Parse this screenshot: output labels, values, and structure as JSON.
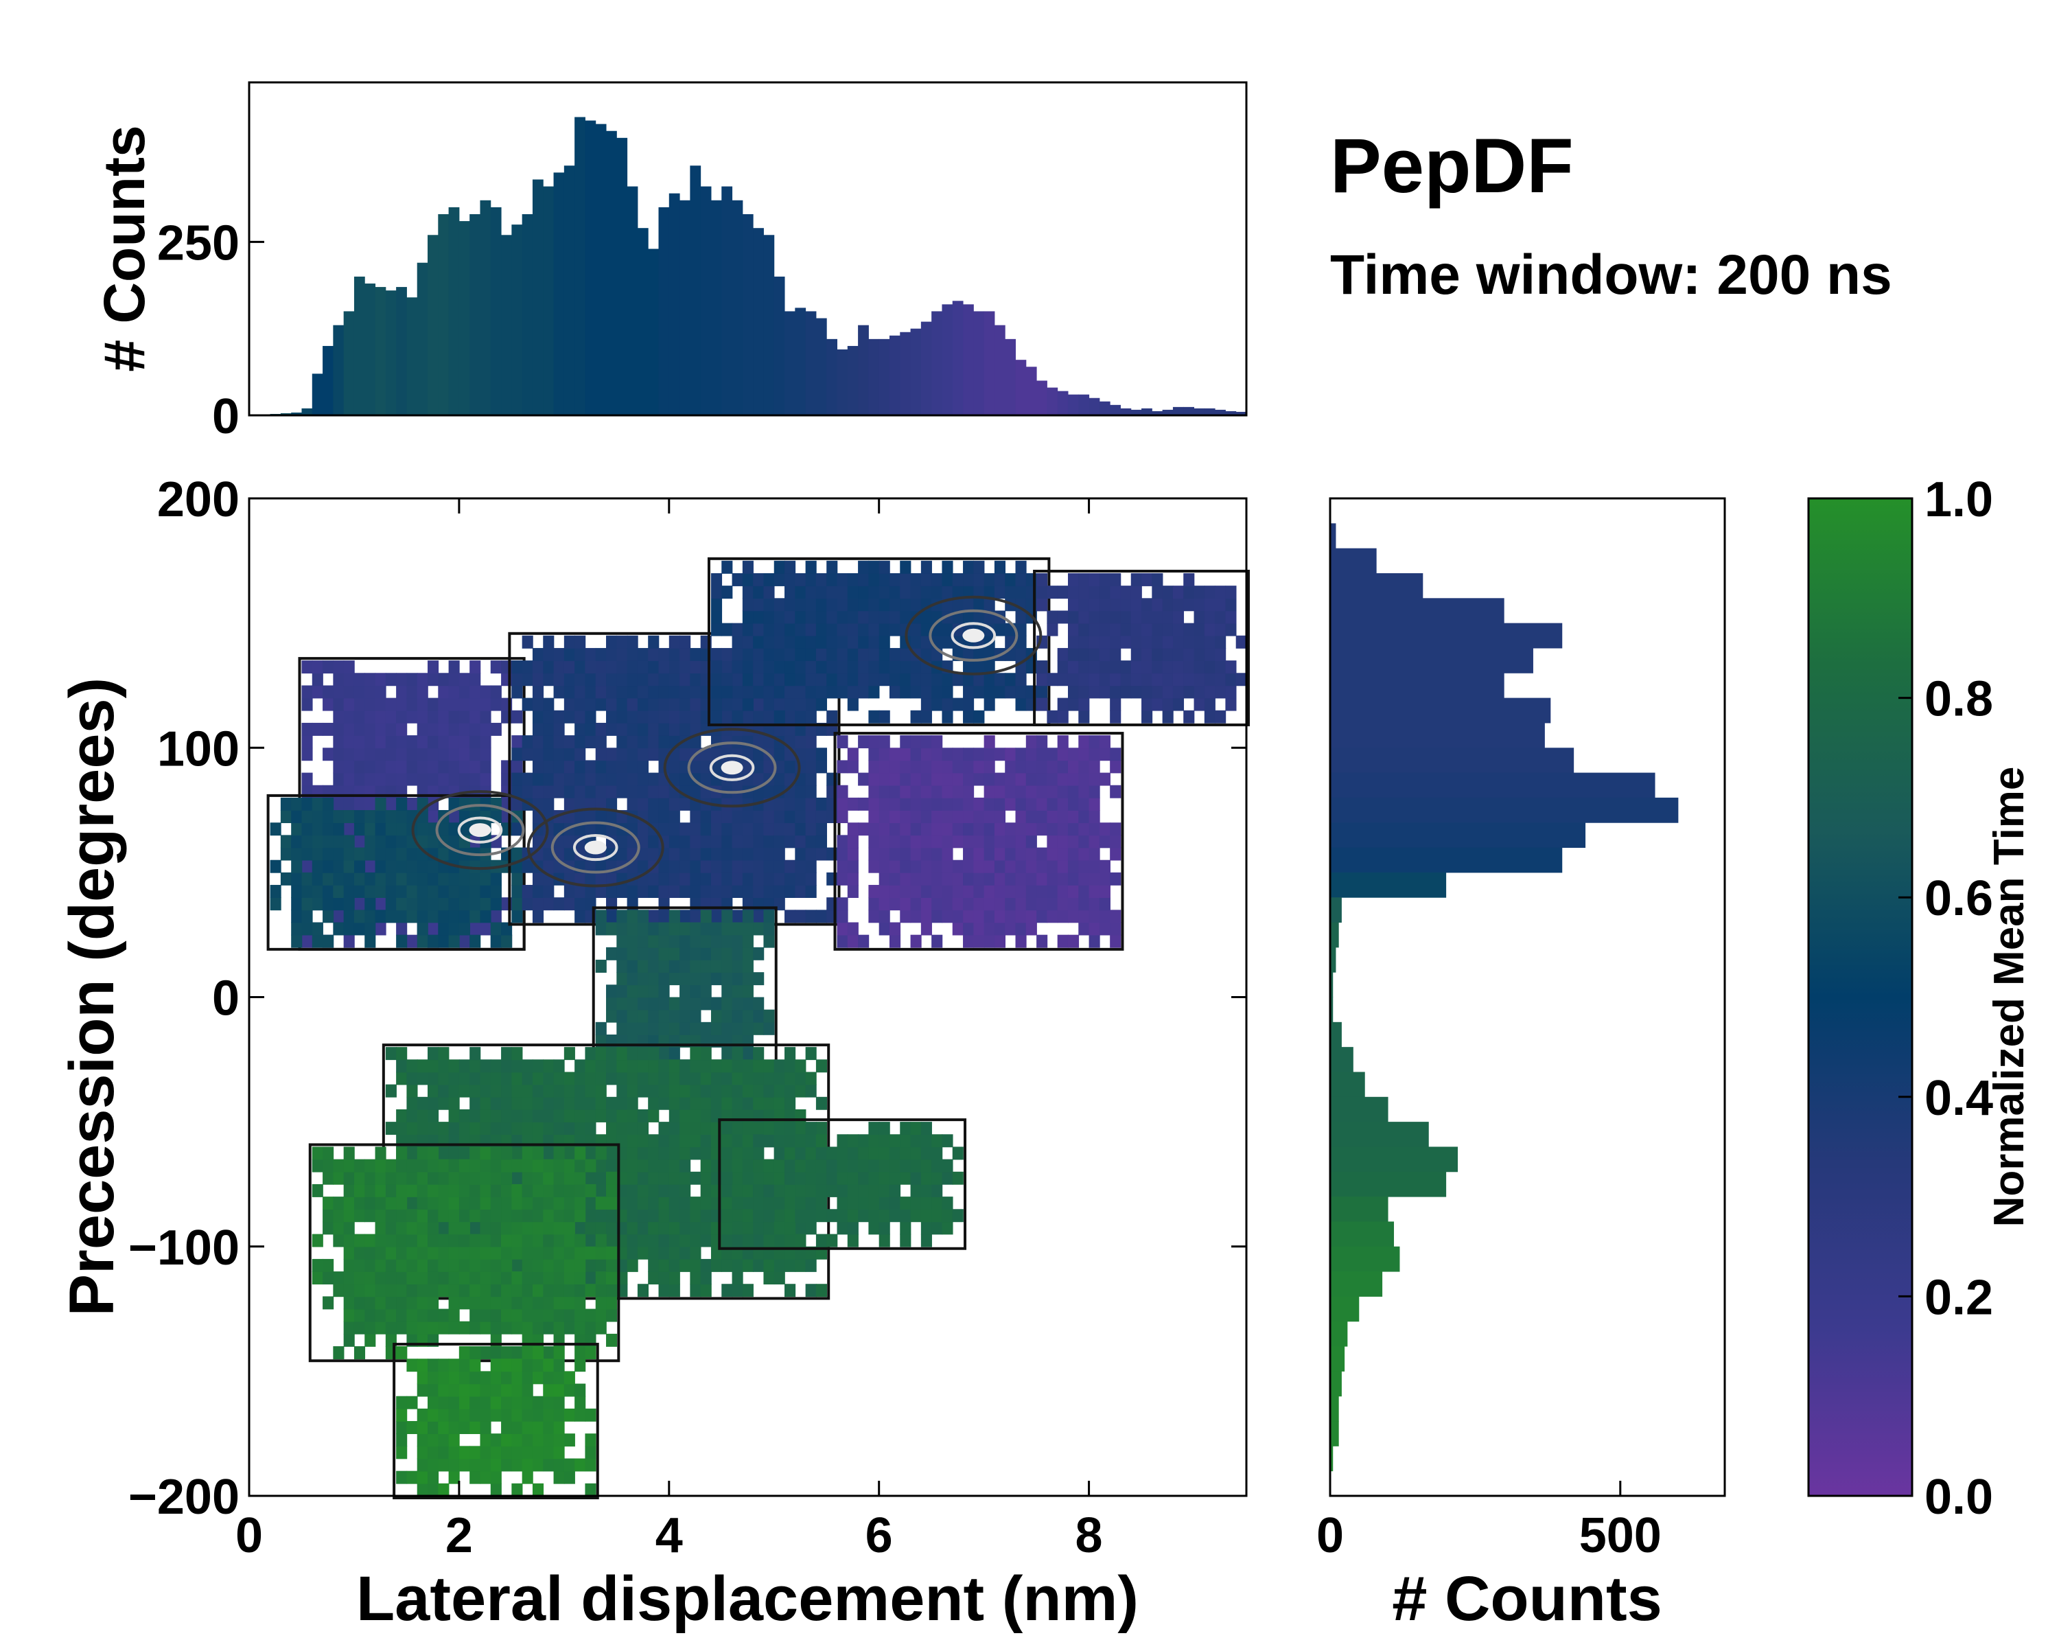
{
  "title": "PepDF",
  "subtitle": "Time window: 200 ns",
  "colors": {
    "cmap": [
      "#6a35a0",
      "#3c3a8f",
      "#26397a",
      "#023e6a",
      "#1a5a5a",
      "#1d6e40",
      "#25902a"
    ]
  },
  "chart_data": [
    {
      "type": "heatmap",
      "name": "main-2d-density",
      "xlabel": "Lateral displacement (nm)",
      "ylabel": "Precession (degrees)",
      "xlim": [
        0,
        9.5
      ],
      "ylim": [
        -200,
        200
      ],
      "xticks": [
        "0",
        "2",
        "4",
        "6",
        "8"
      ],
      "xtick_values": [
        0,
        2,
        4,
        6,
        8
      ],
      "yticks": [
        "200",
        "100",
        "0",
        "−100",
        "−200"
      ],
      "ytick_values": [
        200,
        100,
        0,
        -100,
        -200
      ],
      "regions": [
        {
          "x": [
            0.5,
            2.6
          ],
          "y": [
            20,
            135
          ],
          "t": 0.2
        },
        {
          "x": [
            0.2,
            2.6
          ],
          "y": [
            20,
            80
          ],
          "t": 0.58
        },
        {
          "x": [
            2.5,
            5.6
          ],
          "y": [
            30,
            145
          ],
          "t": 0.38
        },
        {
          "x": [
            4.4,
            7.6
          ],
          "y": [
            110,
            175
          ],
          "t": 0.42
        },
        {
          "x": [
            7.5,
            9.5
          ],
          "y": [
            110,
            170
          ],
          "t": 0.3
        },
        {
          "x": [
            5.6,
            8.3
          ],
          "y": [
            20,
            105
          ],
          "t": 0.1
        },
        {
          "x": [
            3.3,
            5.0
          ],
          "y": [
            -30,
            35
          ],
          "t": 0.68
        },
        {
          "x": [
            1.3,
            5.5
          ],
          "y": [
            -120,
            -20
          ],
          "t": 0.8
        },
        {
          "x": [
            0.6,
            3.5
          ],
          "y": [
            -145,
            -60
          ],
          "t": 0.9
        },
        {
          "x": [
            1.4,
            3.3
          ],
          "y": [
            -200,
            -140
          ],
          "t": 0.96
        },
        {
          "x": [
            4.5,
            6.8
          ],
          "y": [
            -100,
            -50
          ],
          "t": 0.8
        }
      ],
      "hotspots": [
        {
          "x": 2.2,
          "y": 67
        },
        {
          "x": 3.3,
          "y": 60
        },
        {
          "x": 4.6,
          "y": 92
        },
        {
          "x": 6.9,
          "y": 145
        }
      ]
    },
    {
      "type": "bar",
      "name": "top-histogram",
      "ylabel": "# Counts",
      "yticks": [
        "0",
        "250"
      ],
      "ytick_values": [
        0,
        250
      ],
      "ylim": [
        0,
        480
      ],
      "bin_width": 0.1,
      "x_start": 0.2,
      "values": [
        2,
        3,
        4,
        10,
        60,
        100,
        130,
        150,
        200,
        190,
        185,
        180,
        185,
        170,
        220,
        260,
        290,
        300,
        280,
        290,
        310,
        300,
        260,
        275,
        290,
        340,
        330,
        350,
        360,
        430,
        425,
        420,
        410,
        400,
        330,
        270,
        240,
        300,
        320,
        310,
        360,
        330,
        310,
        330,
        310,
        290,
        270,
        260,
        200,
        150,
        155,
        150,
        140,
        110,
        95,
        100,
        130,
        110,
        110,
        115,
        120,
        125,
        135,
        150,
        160,
        165,
        160,
        150,
        150,
        130,
        110,
        80,
        70,
        50,
        40,
        35,
        30,
        30,
        25,
        20,
        15,
        10,
        8,
        10,
        6,
        8,
        12,
        12,
        10,
        10,
        8,
        6,
        5
      ],
      "times": [
        0.6,
        0.6,
        0.55,
        0.55,
        0.5,
        0.5,
        0.55,
        0.6,
        0.6,
        0.6,
        0.62,
        0.6,
        0.58,
        0.6,
        0.6,
        0.62,
        0.62,
        0.6,
        0.6,
        0.58,
        0.58,
        0.56,
        0.56,
        0.56,
        0.55,
        0.55,
        0.55,
        0.52,
        0.52,
        0.52,
        0.5,
        0.5,
        0.5,
        0.5,
        0.5,
        0.5,
        0.5,
        0.48,
        0.48,
        0.48,
        0.48,
        0.47,
        0.47,
        0.46,
        0.46,
        0.45,
        0.45,
        0.45,
        0.44,
        0.42,
        0.42,
        0.4,
        0.4,
        0.38,
        0.36,
        0.35,
        0.34,
        0.32,
        0.3,
        0.28,
        0.26,
        0.25,
        0.22,
        0.2,
        0.18,
        0.16,
        0.14,
        0.14,
        0.12,
        0.12,
        0.12,
        0.1,
        0.1,
        0.1,
        0.12,
        0.14,
        0.16,
        0.18,
        0.2,
        0.22,
        0.24,
        0.26,
        0.28,
        0.3,
        0.3,
        0.3,
        0.3,
        0.3,
        0.3,
        0.3,
        0.3,
        0.3,
        0.3
      ]
    },
    {
      "type": "bar",
      "orientation": "horizontal",
      "name": "right-histogram",
      "xlabel": "# Counts",
      "xticks": [
        "0",
        "500"
      ],
      "xtick_values": [
        0,
        500
      ],
      "xlim": [
        0,
        680
      ],
      "bin_width": 10,
      "y_start": 195,
      "values": [
        0,
        10,
        80,
        160,
        300,
        400,
        350,
        300,
        380,
        370,
        420,
        560,
        600,
        440,
        400,
        200,
        20,
        15,
        10,
        5,
        5,
        20,
        40,
        60,
        100,
        170,
        220,
        200,
        100,
        110,
        120,
        90,
        50,
        30,
        25,
        20,
        15,
        15,
        5,
        0
      ],
      "times": [
        0.35,
        0.35,
        0.35,
        0.35,
        0.35,
        0.35,
        0.35,
        0.35,
        0.35,
        0.35,
        0.36,
        0.38,
        0.4,
        0.42,
        0.45,
        0.55,
        0.7,
        0.75,
        0.75,
        0.75,
        0.75,
        0.75,
        0.75,
        0.76,
        0.76,
        0.77,
        0.78,
        0.8,
        0.85,
        0.88,
        0.9,
        0.92,
        0.93,
        0.94,
        0.95,
        0.95,
        0.95,
        0.95,
        0.95,
        0.95
      ]
    },
    {
      "type": "colorbar",
      "name": "colorbar",
      "label": "Normalized Mean Time",
      "ticks": [
        "0.0",
        "0.2",
        "0.4",
        "0.6",
        "0.8",
        "1.0"
      ],
      "tick_values": [
        0,
        0.2,
        0.4,
        0.6,
        0.8,
        1.0
      ],
      "range": [
        0,
        1
      ]
    }
  ]
}
